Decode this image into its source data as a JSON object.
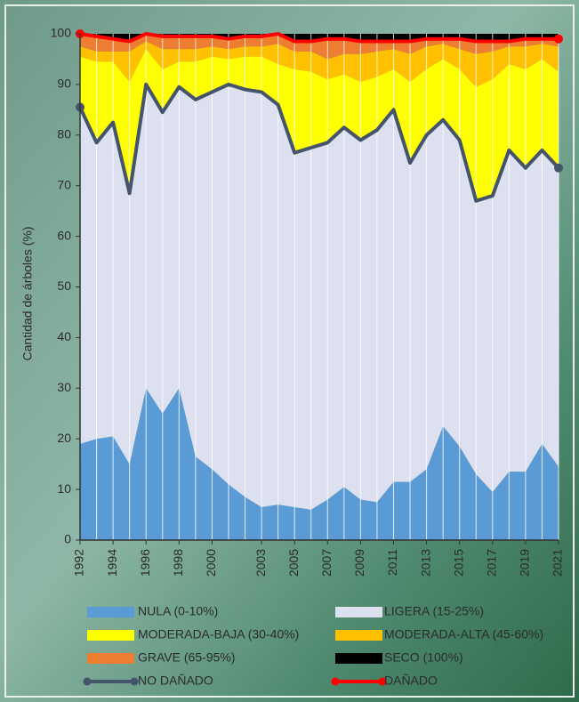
{
  "chart_data": {
    "type": "stacked_area",
    "y_label": "Cantidad de árboles (%)",
    "x": [
      1992,
      1993,
      1994,
      1995,
      1996,
      1997,
      1998,
      1999,
      2000,
      2001,
      2002,
      2003,
      2004,
      2005,
      2006,
      2007,
      2008,
      2009,
      2010,
      2011,
      2012,
      2013,
      2014,
      2015,
      2016,
      2017,
      2018,
      2019,
      2020,
      2021
    ],
    "xlim": [
      1992,
      2021
    ],
    "xticks": [
      1992,
      1994,
      1996,
      1998,
      2000,
      2003,
      2005,
      2007,
      2009,
      2011,
      2013,
      2015,
      2017,
      2019,
      2021
    ],
    "ylim": [
      0,
      100
    ],
    "yticks": [
      0,
      10,
      20,
      30,
      40,
      50,
      60,
      70,
      80,
      90,
      100
    ],
    "series": [
      {
        "name": "NULA (0-10%)",
        "color": "#5b9bd5",
        "values": [
          19,
          20,
          20.5,
          15,
          30,
          25,
          30,
          16.5,
          14,
          11,
          8.5,
          6.5,
          7,
          6.5,
          6,
          8,
          10.5,
          8,
          7.5,
          11.5,
          11.5,
          14,
          22.5,
          18.5,
          13,
          9.5,
          13.5,
          13.5,
          19,
          14.5
        ]
      },
      {
        "name": "LIGERA (15-25%)",
        "color": "#dde0ef",
        "values": [
          66.5,
          58.5,
          62,
          53.5,
          60,
          59.5,
          59.5,
          70.5,
          74.5,
          79,
          80.5,
          82,
          79,
          70,
          71.5,
          70.5,
          71,
          71,
          73.5,
          73.5,
          63,
          66,
          60.5,
          60.5,
          54,
          58.5,
          63.5,
          60,
          58,
          59
        ]
      },
      {
        "name": "MODERADA-BAJA (30-40%)",
        "color": "#ffff00",
        "values": [
          10,
          16,
          12,
          22,
          7,
          8.5,
          5,
          7.5,
          7,
          5,
          6.5,
          7,
          8,
          16.5,
          15,
          12.5,
          10.5,
          11.5,
          10.5,
          8,
          16,
          13,
          12,
          14,
          22.5,
          23,
          17,
          19.5,
          18,
          19
        ]
      },
      {
        "name": "MODERADA-ALTA (45-60%)",
        "color": "#ffc000",
        "values": [
          2,
          2,
          2,
          6,
          1.5,
          4,
          2.5,
          2.5,
          2,
          2,
          2,
          2,
          4,
          3.5,
          4,
          4,
          4,
          5.5,
          5,
          4,
          5.5,
          4.5,
          3,
          4,
          6.5,
          5.5,
          3.5,
          4.5,
          3,
          5
        ]
      },
      {
        "name": "GRAVE (65-95%)",
        "color": "#ed7d31",
        "values": [
          2.5,
          3,
          2.5,
          2,
          1.5,
          2.5,
          2.5,
          2.5,
          2,
          2,
          2,
          2,
          2,
          2,
          2,
          4,
          3,
          2.5,
          2,
          1.5,
          2.5,
          1.5,
          1,
          2,
          2.5,
          2,
          1,
          1.5,
          1,
          1.5
        ]
      },
      {
        "name": "SECO (100%)",
        "color": "#000000",
        "values": [
          0,
          0.5,
          1,
          1.5,
          0,
          0.5,
          0.5,
          0.5,
          0.5,
          1,
          0.5,
          0.5,
          0,
          1.5,
          1.5,
          1,
          1,
          1.5,
          1.5,
          1.5,
          1.5,
          1,
          1,
          1,
          1.5,
          1.5,
          1.5,
          1,
          1,
          1
        ]
      }
    ],
    "lines": [
      {
        "name": "NO DAÑADO",
        "color": "#44546a",
        "values": [
          85.5,
          78.5,
          82.5,
          68.5,
          90,
          84.5,
          89.5,
          87,
          88.5,
          90,
          89,
          88.5,
          86,
          76.5,
          77.5,
          78.5,
          81.5,
          79,
          81,
          85,
          74.5,
          80,
          83,
          79,
          67,
          68,
          77,
          73.5,
          77,
          73.5
        ]
      },
      {
        "name": "DAÑADO",
        "color": "#ff0000",
        "values": [
          100,
          99.5,
          99,
          98.5,
          100,
          99.5,
          99.5,
          99.5,
          99.5,
          99,
          99.5,
          99.5,
          100,
          98.5,
          98.5,
          99,
          99,
          98.5,
          98.5,
          98.5,
          98.5,
          99,
          99,
          99,
          98.5,
          98.5,
          98.5,
          99,
          99,
          99
        ]
      }
    ]
  }
}
